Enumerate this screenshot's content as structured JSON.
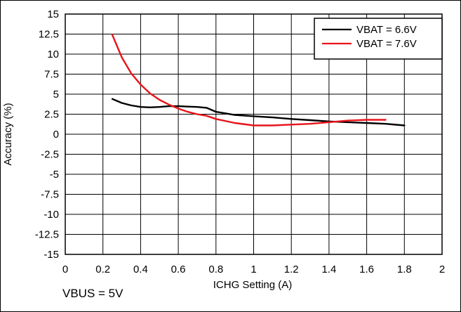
{
  "chart_data": {
    "type": "line",
    "title": "",
    "xlabel": "ICHG Setting (A)",
    "ylabel": "Accuracy (%)",
    "xlim": [
      0,
      2
    ],
    "ylim": [
      -15,
      15
    ],
    "x_ticks": [
      "0",
      "0.2",
      "0.4",
      "0.6",
      "0.8",
      "1",
      "1.2",
      "1.4",
      "1.6",
      "1.8",
      "2"
    ],
    "y_ticks": [
      "15",
      "12.5",
      "10",
      "7.5",
      "5",
      "2.5",
      "0",
      "-2.5",
      "-5",
      "-7.5",
      "-10",
      "-12.5",
      "-15"
    ],
    "grid": true,
    "legend_position": "top-right",
    "series": [
      {
        "name": "VBAT = 6.6V",
        "color": "#000000",
        "x": [
          0.25,
          0.3,
          0.35,
          0.4,
          0.45,
          0.5,
          0.55,
          0.6,
          0.65,
          0.7,
          0.75,
          0.8,
          0.9,
          1.0,
          1.1,
          1.2,
          1.3,
          1.4,
          1.5,
          1.6,
          1.7,
          1.8
        ],
        "y": [
          4.4,
          3.9,
          3.6,
          3.4,
          3.35,
          3.4,
          3.5,
          3.5,
          3.45,
          3.4,
          3.3,
          2.8,
          2.4,
          2.25,
          2.1,
          1.9,
          1.75,
          1.6,
          1.5,
          1.4,
          1.3,
          1.1
        ]
      },
      {
        "name": "VBAT = 7.6V",
        "color": "#e8141b",
        "x": [
          0.25,
          0.3,
          0.35,
          0.4,
          0.45,
          0.5,
          0.55,
          0.6,
          0.65,
          0.7,
          0.75,
          0.8,
          0.9,
          1.0,
          1.1,
          1.2,
          1.3,
          1.4,
          1.5,
          1.6,
          1.7
        ],
        "y": [
          12.4,
          9.6,
          7.6,
          6.2,
          5.1,
          4.3,
          3.7,
          3.2,
          2.8,
          2.5,
          2.3,
          1.9,
          1.4,
          1.1,
          1.1,
          1.2,
          1.3,
          1.5,
          1.7,
          1.8,
          1.8
        ]
      }
    ]
  },
  "footnote": "VBUS = 5V"
}
